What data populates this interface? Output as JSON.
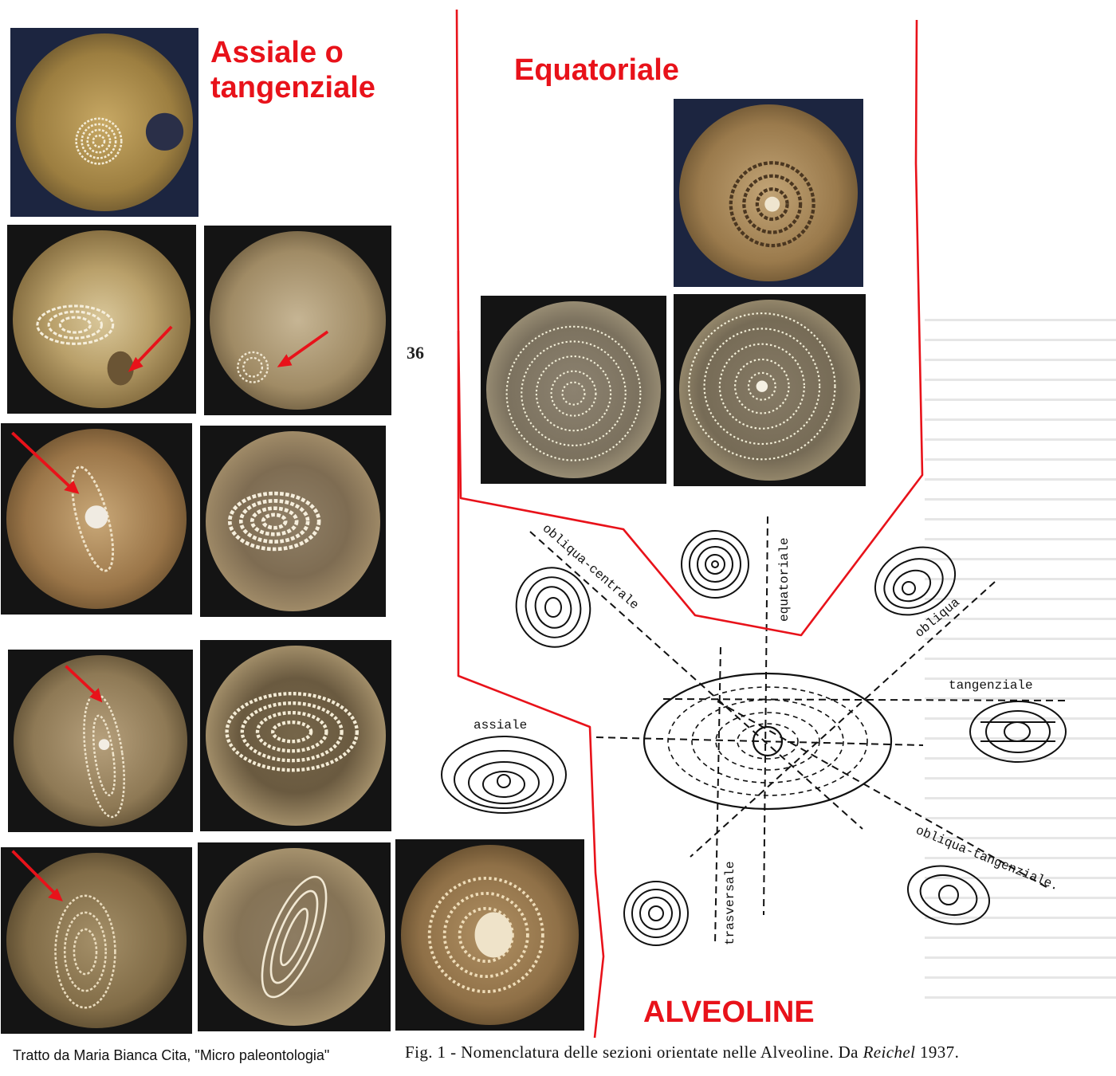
{
  "titles": {
    "axial": "Assiale o\ntangenziale",
    "equatorial": "Equatoriale",
    "alveoline": "ALVEOLINE"
  },
  "page_number": "36",
  "diagram_labels": {
    "oblique_central": "obliqua-centrale",
    "equatorial": "equatoriale",
    "oblique": "obliqua",
    "tangential": "tangenziale",
    "axial": "assiale",
    "oblique_tangential": "obliqua-tangenziale.",
    "transverse": "trasversale"
  },
  "captions": {
    "source": "Tratto da Maria Bianca Cita, \"Micro paleontologia\"",
    "fig_prefix": "Fig. 1 - Nomenclatura delle sezioni orientate nelle Alveoline. Da ",
    "fig_author": "Reichel",
    "fig_year": " 1937."
  },
  "colors": {
    "accent_red": "#e8121a",
    "ink": "#111111"
  },
  "photos": [
    {
      "id": "axial-1",
      "tint": "blue"
    },
    {
      "id": "axial-2"
    },
    {
      "id": "axial-3"
    },
    {
      "id": "axial-4"
    },
    {
      "id": "axial-5"
    },
    {
      "id": "axial-6"
    },
    {
      "id": "axial-7"
    },
    {
      "id": "axial-8"
    },
    {
      "id": "axial-9"
    },
    {
      "id": "axial-10"
    },
    {
      "id": "equatorial-1",
      "tint": "blue"
    },
    {
      "id": "equatorial-2"
    },
    {
      "id": "equatorial-3"
    }
  ]
}
